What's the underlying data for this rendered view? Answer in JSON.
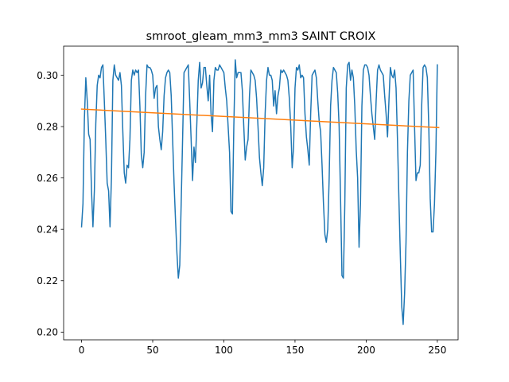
{
  "chart_data": {
    "type": "line",
    "title": "smroot_gleam_mm3_mm3 SAINT CROIX",
    "xlabel": "",
    "ylabel": "",
    "xlim": [
      -12.6,
      264.6
    ],
    "ylim": [
      0.197,
      0.3113
    ],
    "xticks": [
      0,
      50,
      100,
      150,
      200,
      250
    ],
    "yticks": [
      0.2,
      0.22,
      0.24,
      0.26,
      0.28,
      0.3
    ],
    "xtick_labels": [
      "0",
      "50",
      "100",
      "150",
      "200",
      "250"
    ],
    "ytick_labels": [
      "0.20",
      "0.22",
      "0.24",
      "0.26",
      "0.28",
      "0.30"
    ],
    "grid": false,
    "legend": "none",
    "series": [
      {
        "color": "#1f77b4",
        "values": [
          0.241,
          0.25,
          0.283,
          0.299,
          0.29,
          0.277,
          0.275,
          0.255,
          0.241,
          0.255,
          0.281,
          0.296,
          0.3,
          0.299,
          0.303,
          0.304,
          0.29,
          0.275,
          0.258,
          0.255,
          0.241,
          0.26,
          0.298,
          0.304,
          0.3,
          0.299,
          0.298,
          0.301,
          0.296,
          0.278,
          0.262,
          0.258,
          0.265,
          0.264,
          0.275,
          0.298,
          0.302,
          0.3,
          0.302,
          0.301,
          0.302,
          0.288,
          0.269,
          0.264,
          0.27,
          0.292,
          0.304,
          0.303,
          0.303,
          0.302,
          0.3,
          0.291,
          0.295,
          0.296,
          0.28,
          0.275,
          0.271,
          0.278,
          0.292,
          0.299,
          0.301,
          0.302,
          0.301,
          0.292,
          0.275,
          0.258,
          0.244,
          0.231,
          0.221,
          0.226,
          0.25,
          0.275,
          0.301,
          0.302,
          0.303,
          0.304,
          0.29,
          0.275,
          0.259,
          0.272,
          0.266,
          0.281,
          0.298,
          0.305,
          0.295,
          0.297,
          0.303,
          0.303,
          0.296,
          0.29,
          0.3,
          0.285,
          0.278,
          0.298,
          0.303,
          0.302,
          0.302,
          0.304,
          0.303,
          0.302,
          0.301,
          0.295,
          0.29,
          0.28,
          0.27,
          0.247,
          0.246,
          0.28,
          0.306,
          0.299,
          0.301,
          0.301,
          0.301,
          0.294,
          0.28,
          0.267,
          0.272,
          0.275,
          0.292,
          0.302,
          0.301,
          0.3,
          0.298,
          0.291,
          0.28,
          0.268,
          0.262,
          0.257,
          0.264,
          0.285,
          0.298,
          0.303,
          0.3,
          0.3,
          0.298,
          0.288,
          0.294,
          0.285,
          0.292,
          0.295,
          0.302,
          0.301,
          0.302,
          0.301,
          0.3,
          0.298,
          0.291,
          0.28,
          0.264,
          0.272,
          0.295,
          0.303,
          0.302,
          0.304,
          0.299,
          0.3,
          0.299,
          0.285,
          0.276,
          0.271,
          0.265,
          0.285,
          0.3,
          0.301,
          0.302,
          0.299,
          0.29,
          0.282,
          0.278,
          0.265,
          0.25,
          0.238,
          0.235,
          0.24,
          0.26,
          0.288,
          0.298,
          0.303,
          0.302,
          0.301,
          0.293,
          0.28,
          0.252,
          0.222,
          0.221,
          0.25,
          0.295,
          0.304,
          0.305,
          0.298,
          0.302,
          0.299,
          0.288,
          0.271,
          0.26,
          0.233,
          0.25,
          0.288,
          0.302,
          0.304,
          0.304,
          0.303,
          0.3,
          0.292,
          0.285,
          0.28,
          0.275,
          0.29,
          0.302,
          0.304,
          0.302,
          0.301,
          0.3,
          0.292,
          0.285,
          0.276,
          0.29,
          0.303,
          0.3,
          0.299,
          0.302,
          0.295,
          0.275,
          0.252,
          0.23,
          0.21,
          0.203,
          0.215,
          0.235,
          0.27,
          0.29,
          0.3,
          0.301,
          0.302,
          0.28,
          0.259,
          0.262,
          0.262,
          0.265,
          0.288,
          0.303,
          0.304,
          0.303,
          0.299,
          0.28,
          0.252,
          0.239,
          0.239,
          0.25,
          0.27,
          0.304
        ]
      },
      {
        "color": "#ff7f0e",
        "x": [
          0,
          251
        ],
        "values": [
          0.2868,
          0.2796
        ]
      }
    ]
  }
}
